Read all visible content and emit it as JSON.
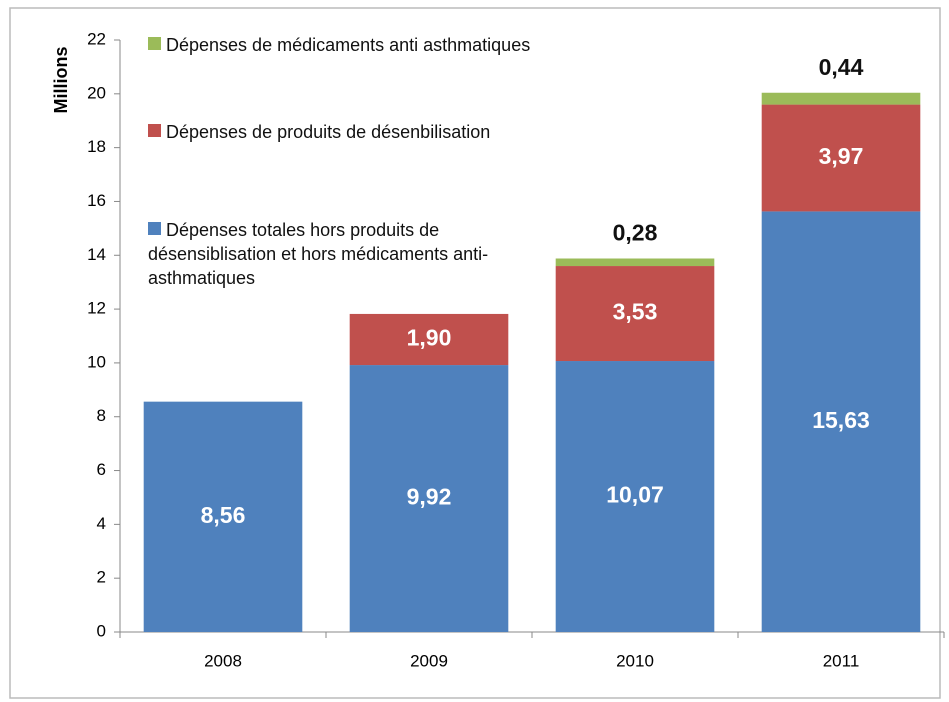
{
  "chart_data": {
    "type": "bar",
    "stacked": true,
    "y_label": "Millions",
    "categories": [
      "2008",
      "2009",
      "2010",
      "2011"
    ],
    "series": [
      {
        "name": "Dépenses totales hors produits de désensiblisation et hors médicaments anti-asthmatiques",
        "color": "#4f81bd",
        "values": [
          8.56,
          9.92,
          10.07,
          15.63
        ],
        "value_labels": [
          "8,56",
          "9,92",
          "10,07",
          "15,63"
        ]
      },
      {
        "name": "Dépenses de produits de désenbilisation",
        "color": "#c0504d",
        "values": [
          null,
          1.9,
          3.53,
          3.97
        ],
        "value_labels": [
          null,
          "1,90",
          "3,53",
          "3,97"
        ]
      },
      {
        "name": "Dépenses de médicaments anti asthmatiques",
        "color": "#9bbb59",
        "values": [
          null,
          null,
          0.28,
          0.44
        ],
        "value_labels": [
          null,
          null,
          "0,28",
          "0,44"
        ]
      }
    ],
    "ylim": [
      0,
      22
    ],
    "yticks": [
      0,
      2,
      4,
      6,
      8,
      10,
      12,
      14,
      16,
      18,
      20,
      22
    ],
    "grid": false,
    "legend": "upper left"
  }
}
